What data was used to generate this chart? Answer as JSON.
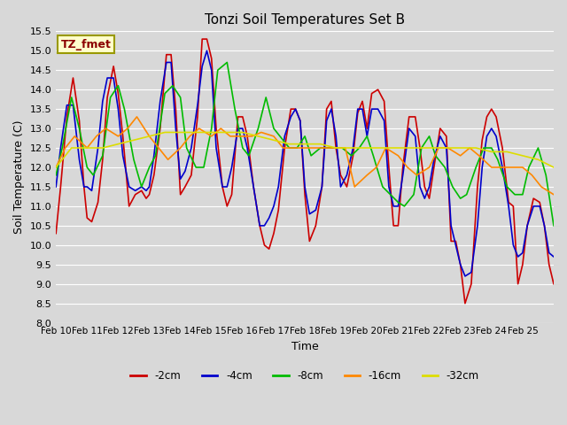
{
  "title": "Tonzi Soil Temperatures Set B",
  "xlabel": "Time",
  "ylabel": "Soil Temperature (C)",
  "ylim": [
    8.0,
    15.5
  ],
  "yticks": [
    8.0,
    8.5,
    9.0,
    9.5,
    10.0,
    10.5,
    11.0,
    11.5,
    12.0,
    12.5,
    13.0,
    13.5,
    14.0,
    14.5,
    15.0,
    15.5
  ],
  "xtick_labels": [
    "Feb 10",
    "Feb 11",
    "Feb 12",
    "Feb 13",
    "Feb 14",
    "Feb 15",
    "Feb 16",
    "Feb 17",
    "Feb 18",
    "Feb 19",
    "Feb 20",
    "Feb 21",
    "Feb 22",
    "Feb 23",
    "Feb 24",
    "Feb 25"
  ],
  "annotation_text": "TZ_fmet",
  "annotation_color": "#8B0000",
  "annotation_bg": "#ffffcc",
  "annotation_border": "#999900",
  "series": {
    "-2cm": {
      "color": "#CC0000",
      "linewidth": 1.2,
      "x": [
        0.0,
        0.15,
        0.35,
        0.55,
        0.75,
        0.9,
        1.0,
        1.15,
        1.35,
        1.5,
        1.65,
        1.85,
        2.0,
        2.15,
        2.35,
        2.55,
        2.75,
        2.9,
        3.0,
        3.15,
        3.35,
        3.55,
        3.7,
        3.85,
        4.0,
        4.15,
        4.35,
        4.55,
        4.7,
        4.85,
        5.0,
        5.15,
        5.35,
        5.5,
        5.65,
        5.85,
        6.0,
        6.15,
        6.35,
        6.55,
        6.7,
        6.85,
        7.0,
        7.15,
        7.35,
        7.55,
        7.7,
        7.85,
        8.0,
        8.15,
        8.35,
        8.55,
        8.7,
        8.85,
        9.0,
        9.15,
        9.35,
        9.55,
        9.7,
        9.85,
        10.0,
        10.15,
        10.35,
        10.55,
        10.7,
        10.85,
        11.0,
        11.15,
        11.35,
        11.55,
        11.7,
        11.85,
        12.0,
        12.15,
        12.35,
        12.55,
        12.7,
        12.85,
        13.0,
        13.15,
        13.35,
        13.55,
        13.7,
        13.85,
        14.0,
        14.15,
        14.35,
        14.55,
        14.7,
        14.85,
        15.0,
        15.15,
        15.35,
        15.55,
        15.7,
        15.85,
        16.0
      ],
      "y": [
        10.3,
        11.5,
        13.3,
        14.3,
        13.2,
        11.5,
        10.7,
        10.6,
        11.1,
        12.2,
        13.8,
        14.6,
        13.9,
        12.8,
        11.0,
        11.3,
        11.4,
        11.2,
        11.3,
        11.8,
        13.0,
        14.9,
        14.9,
        13.5,
        11.3,
        11.5,
        11.8,
        13.3,
        15.3,
        15.3,
        14.8,
        13.0,
        11.5,
        11.0,
        11.3,
        13.3,
        13.3,
        12.8,
        11.5,
        10.5,
        10.0,
        9.9,
        10.3,
        10.9,
        12.5,
        13.5,
        13.5,
        13.2,
        11.3,
        10.1,
        10.5,
        11.5,
        13.5,
        13.7,
        12.5,
        11.8,
        11.5,
        12.3,
        13.4,
        13.7,
        13.0,
        13.9,
        14.0,
        13.7,
        12.0,
        10.5,
        10.5,
        12.0,
        13.3,
        13.3,
        12.5,
        11.5,
        11.2,
        12.0,
        13.0,
        12.8,
        10.1,
        10.1,
        9.5,
        8.5,
        9.0,
        11.5,
        12.7,
        13.3,
        13.5,
        13.3,
        12.5,
        11.1,
        11.0,
        9.0,
        9.5,
        10.5,
        11.2,
        11.1,
        10.5,
        9.5,
        9.0
      ]
    },
    "-4cm": {
      "color": "#0000CC",
      "linewidth": 1.2,
      "x": [
        0.0,
        0.15,
        0.35,
        0.55,
        0.75,
        0.9,
        1.0,
        1.15,
        1.35,
        1.5,
        1.65,
        1.85,
        2.0,
        2.15,
        2.35,
        2.55,
        2.75,
        2.9,
        3.0,
        3.15,
        3.35,
        3.55,
        3.7,
        3.85,
        4.0,
        4.15,
        4.35,
        4.55,
        4.7,
        4.85,
        5.0,
        5.15,
        5.35,
        5.5,
        5.65,
        5.85,
        6.0,
        6.15,
        6.35,
        6.55,
        6.7,
        6.85,
        7.0,
        7.15,
        7.35,
        7.55,
        7.7,
        7.85,
        8.0,
        8.15,
        8.35,
        8.55,
        8.7,
        8.85,
        9.0,
        9.15,
        9.35,
        9.55,
        9.7,
        9.85,
        10.0,
        10.15,
        10.35,
        10.55,
        10.7,
        10.85,
        11.0,
        11.15,
        11.35,
        11.55,
        11.7,
        11.85,
        12.0,
        12.15,
        12.35,
        12.55,
        12.7,
        12.85,
        13.0,
        13.15,
        13.35,
        13.55,
        13.7,
        13.85,
        14.0,
        14.15,
        14.35,
        14.55,
        14.7,
        14.85,
        15.0,
        15.15,
        15.35,
        15.55,
        15.7,
        15.85,
        16.0
      ],
      "y": [
        11.5,
        12.5,
        13.6,
        13.6,
        12.2,
        11.5,
        11.5,
        11.4,
        12.5,
        13.7,
        14.3,
        14.3,
        13.5,
        12.3,
        11.5,
        11.4,
        11.5,
        11.4,
        11.5,
        12.3,
        13.7,
        14.7,
        14.7,
        13.0,
        11.7,
        11.9,
        12.5,
        13.6,
        14.6,
        15.0,
        14.5,
        12.5,
        11.5,
        11.5,
        12.0,
        13.0,
        13.0,
        12.5,
        11.5,
        10.5,
        10.5,
        10.7,
        11.0,
        11.5,
        12.8,
        13.3,
        13.5,
        13.2,
        11.5,
        10.8,
        10.9,
        11.5,
        13.2,
        13.5,
        12.8,
        11.5,
        11.8,
        12.5,
        13.5,
        13.5,
        12.8,
        13.5,
        13.5,
        13.2,
        11.5,
        11.0,
        11.0,
        11.8,
        13.0,
        12.8,
        11.5,
        11.2,
        11.5,
        12.2,
        12.8,
        12.5,
        10.5,
        10.0,
        9.5,
        9.2,
        9.3,
        10.5,
        12.0,
        12.8,
        13.0,
        12.8,
        12.0,
        11.0,
        10.0,
        9.7,
        9.8,
        10.5,
        11.0,
        11.0,
        10.5,
        9.8,
        9.7
      ]
    },
    "-8cm": {
      "color": "#00BB00",
      "linewidth": 1.2,
      "x": [
        0.0,
        0.2,
        0.5,
        0.75,
        1.0,
        1.2,
        1.5,
        1.75,
        2.0,
        2.2,
        2.5,
        2.75,
        3.0,
        3.2,
        3.5,
        3.75,
        4.0,
        4.2,
        4.5,
        4.75,
        5.0,
        5.2,
        5.5,
        5.75,
        6.0,
        6.2,
        6.5,
        6.75,
        7.0,
        7.2,
        7.5,
        7.75,
        8.0,
        8.2,
        8.5,
        8.75,
        9.0,
        9.2,
        9.5,
        9.75,
        10.0,
        10.2,
        10.5,
        10.75,
        11.0,
        11.2,
        11.5,
        11.75,
        12.0,
        12.2,
        12.5,
        12.75,
        13.0,
        13.2,
        13.5,
        13.75,
        14.0,
        14.2,
        14.5,
        14.75,
        15.0,
        15.2,
        15.5,
        15.75,
        16.0
      ],
      "y": [
        11.8,
        12.5,
        13.8,
        13.0,
        12.0,
        11.8,
        12.3,
        13.8,
        14.1,
        13.5,
        12.2,
        11.5,
        12.0,
        12.3,
        13.9,
        14.1,
        13.8,
        12.5,
        12.0,
        12.0,
        13.0,
        14.5,
        14.7,
        13.5,
        12.5,
        12.3,
        13.0,
        13.8,
        13.0,
        12.8,
        12.5,
        12.5,
        12.8,
        12.3,
        12.5,
        12.5,
        12.5,
        12.5,
        12.3,
        12.5,
        12.8,
        12.3,
        11.5,
        11.3,
        11.1,
        11.0,
        11.3,
        12.5,
        12.8,
        12.3,
        12.0,
        11.5,
        11.2,
        11.3,
        12.0,
        12.5,
        12.5,
        12.2,
        11.5,
        11.3,
        11.3,
        12.0,
        12.5,
        11.8,
        10.5
      ]
    },
    "-16cm": {
      "color": "#FF8800",
      "linewidth": 1.2,
      "x": [
        0.0,
        0.3,
        0.6,
        1.0,
        1.3,
        1.6,
        2.0,
        2.3,
        2.6,
        3.0,
        3.3,
        3.6,
        4.0,
        4.3,
        4.6,
        5.0,
        5.3,
        5.6,
        6.0,
        6.3,
        6.6,
        7.0,
        7.3,
        7.6,
        8.0,
        8.3,
        8.6,
        9.0,
        9.3,
        9.6,
        10.0,
        10.3,
        10.6,
        11.0,
        11.3,
        11.6,
        12.0,
        12.3,
        12.6,
        13.0,
        13.3,
        13.6,
        14.0,
        14.3,
        14.6,
        15.0,
        15.3,
        15.6,
        16.0
      ],
      "y": [
        12.0,
        12.5,
        12.8,
        12.5,
        12.8,
        13.0,
        12.8,
        13.0,
        13.3,
        12.8,
        12.5,
        12.2,
        12.5,
        12.8,
        13.0,
        12.8,
        13.0,
        12.8,
        12.8,
        12.8,
        12.9,
        12.8,
        12.5,
        12.5,
        12.5,
        12.5,
        12.5,
        12.5,
        12.5,
        11.5,
        11.8,
        12.0,
        12.5,
        12.3,
        12.0,
        11.8,
        12.0,
        12.5,
        12.5,
        12.3,
        12.5,
        12.3,
        12.0,
        12.0,
        12.0,
        12.0,
        11.8,
        11.5,
        11.3
      ]
    },
    "-32cm": {
      "color": "#DDDD00",
      "linewidth": 1.2,
      "x": [
        0.0,
        0.5,
        1.0,
        1.5,
        2.0,
        2.5,
        3.0,
        3.5,
        4.0,
        4.5,
        5.0,
        5.5,
        6.0,
        6.5,
        7.0,
        7.5,
        8.0,
        8.5,
        9.0,
        9.5,
        10.0,
        10.5,
        11.0,
        11.5,
        12.0,
        12.5,
        13.0,
        13.5,
        14.0,
        14.5,
        15.0,
        15.5,
        16.0
      ],
      "y": [
        12.0,
        12.5,
        12.5,
        12.5,
        12.6,
        12.7,
        12.8,
        12.9,
        12.9,
        12.9,
        12.9,
        12.9,
        12.9,
        12.8,
        12.7,
        12.6,
        12.6,
        12.6,
        12.5,
        12.5,
        12.5,
        12.5,
        12.5,
        12.5,
        12.5,
        12.5,
        12.5,
        12.5,
        12.4,
        12.4,
        12.3,
        12.2,
        12.0
      ]
    }
  },
  "legend": [
    {
      "label": "-2cm",
      "color": "#CC0000"
    },
    {
      "label": "-4cm",
      "color": "#0000CC"
    },
    {
      "label": "-8cm",
      "color": "#00BB00"
    },
    {
      "label": "-16cm",
      "color": "#FF8800"
    },
    {
      "label": "-32cm",
      "color": "#DDDD00"
    }
  ],
  "bg_color": "#D8D8D8",
  "plot_bg_color": "#D8D8D8",
  "grid_color": "#ffffff",
  "figsize": [
    6.4,
    4.8
  ],
  "dpi": 100
}
